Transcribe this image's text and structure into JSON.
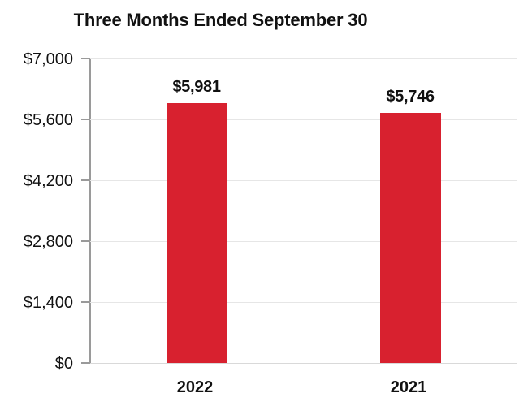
{
  "title": "Three Months Ended September 30",
  "chart_data": {
    "type": "bar",
    "title": "Three Months Ended September 30",
    "categories": [
      "2022",
      "2021"
    ],
    "values": [
      5981,
      5746
    ],
    "value_labels": [
      "$5,981",
      "$5,746"
    ],
    "series_name": "",
    "xlabel": "",
    "ylabel": "",
    "ylim": [
      0,
      7000
    ],
    "y_ticks": [
      {
        "value": 7000,
        "label": "$7,000"
      },
      {
        "value": 5600,
        "label": "$5,600"
      },
      {
        "value": 4200,
        "label": "$4,200"
      },
      {
        "value": 2800,
        "label": "$2,800"
      },
      {
        "value": 1400,
        "label": "$1,400"
      },
      {
        "value": 0,
        "label": "$0"
      }
    ],
    "grid": true,
    "legend": false,
    "colors": {
      "bar": "#d8212f",
      "gridline": "#e6e6e6",
      "axis": "#9a9a9a",
      "text": "#111111",
      "background": "#ffffff"
    }
  }
}
